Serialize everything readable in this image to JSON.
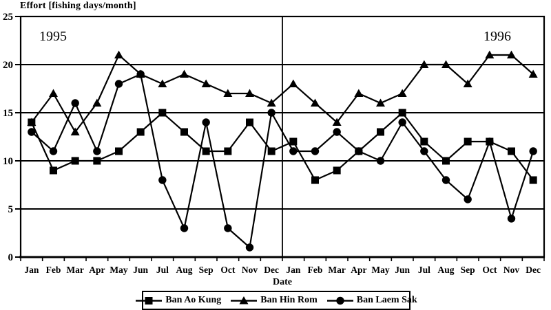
{
  "chart": {
    "accent_color": "#000000",
    "background_color": "#ffffff"
  },
  "chart_data": {
    "type": "line",
    "title": "Effort [fishing days/month]",
    "xlabel": "Date",
    "ylabel": "",
    "ylim": [
      0,
      25
    ],
    "yticks": [
      0,
      5,
      10,
      15,
      20,
      25
    ],
    "grid": "horizontal",
    "legend_position": "bottom",
    "year_labels": [
      "1995",
      "1996"
    ],
    "year_separator_after_index": 11,
    "categories": [
      "Jan",
      "Feb",
      "Mar",
      "Apr",
      "May",
      "Jun",
      "Jul",
      "Aug",
      "Sep",
      "Oct",
      "Nov",
      "Dec",
      "Jan",
      "Feb",
      "Mar",
      "Apr",
      "May",
      "Jun",
      "Jul",
      "Aug",
      "Sep",
      "Oct",
      "Nov",
      "Dec"
    ],
    "series": [
      {
        "name": "Ban Ao Kung",
        "marker": "square",
        "color": "#000000",
        "z": 3,
        "values": [
          14,
          9,
          10,
          10,
          11,
          13,
          15,
          13,
          11,
          11,
          14,
          11,
          12,
          8,
          9,
          11,
          13,
          15,
          12,
          10,
          12,
          12,
          11,
          8
        ]
      },
      {
        "name": "Ban Hin Rom",
        "marker": "triangle",
        "color": "#000000",
        "z": 1,
        "values": [
          14,
          17,
          13,
          16,
          21,
          19,
          18,
          19,
          18,
          17,
          17,
          16,
          18,
          16,
          14,
          17,
          16,
          17,
          20,
          20,
          18,
          21,
          21,
          19
        ]
      },
      {
        "name": "Ban Laem Sak",
        "marker": "circle",
        "color": "#000000",
        "z": 2,
        "values": [
          13,
          11,
          16,
          11,
          18,
          19,
          8,
          3,
          14,
          3,
          1,
          15,
          11,
          11,
          13,
          11,
          10,
          14,
          11,
          8,
          6,
          12,
          4,
          11
        ]
      }
    ]
  }
}
